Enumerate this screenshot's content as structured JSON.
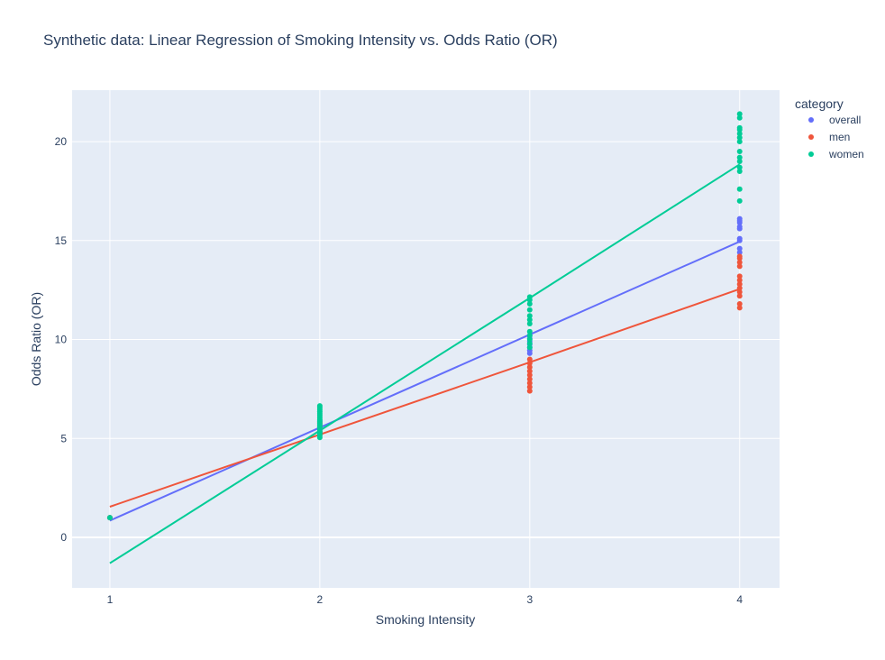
{
  "chart_data": {
    "type": "scatter",
    "title": "Synthetic data: Linear Regression of Smoking Intensity vs. Odds Ratio (OR)",
    "xlabel": "Smoking Intensity",
    "ylabel": "Odds Ratio (OR)",
    "xlim": [
      0.82,
      4.19
    ],
    "ylim": [
      -2.55,
      22.6
    ],
    "x_ticks": [
      1,
      2,
      3,
      4
    ],
    "y_ticks": [
      0,
      5,
      10,
      15,
      20
    ],
    "grid": true,
    "legend_title": "category",
    "legend_position": "top-right",
    "series": [
      {
        "name": "overall",
        "color": "#636efa",
        "points": [
          [
            1,
            1.0
          ],
          [
            2,
            5.3
          ],
          [
            2,
            5.45
          ],
          [
            2,
            5.6
          ],
          [
            2,
            5.75
          ],
          [
            2,
            5.9
          ],
          [
            3,
            9.3
          ],
          [
            3,
            9.45
          ],
          [
            3,
            9.6
          ],
          [
            3,
            9.75
          ],
          [
            3,
            9.9
          ],
          [
            3,
            10.05
          ],
          [
            3,
            10.2
          ],
          [
            4,
            14.4
          ],
          [
            4,
            14.6
          ],
          [
            4,
            15.0
          ],
          [
            4,
            15.1
          ],
          [
            4,
            15.6
          ],
          [
            4,
            15.7
          ],
          [
            4,
            15.9
          ],
          [
            4,
            16.0
          ],
          [
            4,
            16.1
          ]
        ],
        "fit": [
          [
            1,
            0.85
          ],
          [
            2,
            5.55
          ],
          [
            3,
            10.25
          ],
          [
            4,
            14.95
          ]
        ]
      },
      {
        "name": "men",
        "color": "#ef553b",
        "points": [
          [
            1,
            1.0
          ],
          [
            2,
            5.2
          ],
          [
            2,
            5.35
          ],
          [
            2,
            5.5
          ],
          [
            2,
            5.65
          ],
          [
            2,
            5.8
          ],
          [
            3,
            7.4
          ],
          [
            3,
            7.6
          ],
          [
            3,
            7.8
          ],
          [
            3,
            8.0
          ],
          [
            3,
            8.2
          ],
          [
            3,
            8.4
          ],
          [
            3,
            8.6
          ],
          [
            3,
            8.8
          ],
          [
            3,
            9.0
          ],
          [
            4,
            11.6
          ],
          [
            4,
            11.8
          ],
          [
            4,
            12.2
          ],
          [
            4,
            12.4
          ],
          [
            4,
            12.6
          ],
          [
            4,
            12.8
          ],
          [
            4,
            13.0
          ],
          [
            4,
            13.2
          ],
          [
            4,
            13.7
          ],
          [
            4,
            13.9
          ],
          [
            4,
            14.1
          ],
          [
            4,
            14.2
          ]
        ],
        "fit": [
          [
            1,
            1.55
          ],
          [
            2,
            5.2
          ],
          [
            3,
            8.85
          ],
          [
            4,
            12.55
          ]
        ]
      },
      {
        "name": "women",
        "color": "#00cc96",
        "points": [
          [
            1,
            1.0
          ],
          [
            2,
            5.05
          ],
          [
            2,
            5.15
          ],
          [
            2,
            5.25
          ],
          [
            2,
            5.35
          ],
          [
            2,
            5.45
          ],
          [
            2,
            5.55
          ],
          [
            2,
            5.65
          ],
          [
            2,
            5.75
          ],
          [
            2,
            5.85
          ],
          [
            2,
            5.95
          ],
          [
            2,
            6.05
          ],
          [
            2,
            6.15
          ],
          [
            2,
            6.25
          ],
          [
            2,
            6.35
          ],
          [
            2,
            6.45
          ],
          [
            2,
            6.55
          ],
          [
            2,
            6.65
          ],
          [
            3,
            9.6
          ],
          [
            3,
            9.8
          ],
          [
            3,
            10.0
          ],
          [
            3,
            10.2
          ],
          [
            3,
            10.4
          ],
          [
            3,
            10.8
          ],
          [
            3,
            11.0
          ],
          [
            3,
            11.2
          ],
          [
            3,
            11.5
          ],
          [
            3,
            11.8
          ],
          [
            3,
            12.0
          ],
          [
            3,
            12.15
          ],
          [
            4,
            17.0
          ],
          [
            4,
            17.6
          ],
          [
            4,
            18.5
          ],
          [
            4,
            18.7
          ],
          [
            4,
            19.0
          ],
          [
            4,
            19.2
          ],
          [
            4,
            19.5
          ],
          [
            4,
            20.0
          ],
          [
            4,
            20.2
          ],
          [
            4,
            20.4
          ],
          [
            4,
            20.6
          ],
          [
            4,
            20.7
          ],
          [
            4,
            21.2
          ],
          [
            4,
            21.4
          ]
        ],
        "fit": [
          [
            1,
            -1.3
          ],
          [
            2,
            5.4
          ],
          [
            3,
            12.1
          ],
          [
            4,
            18.85
          ]
        ]
      }
    ]
  }
}
